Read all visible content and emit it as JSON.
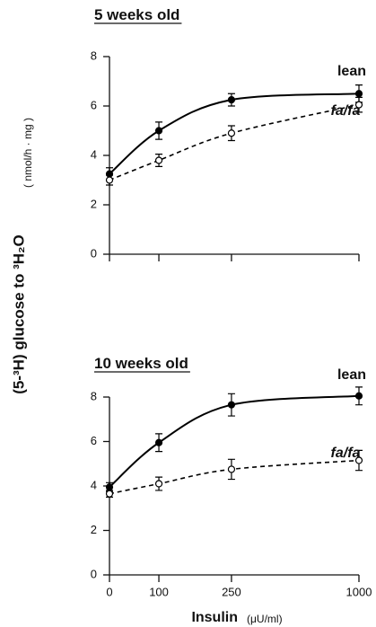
{
  "shared": {
    "ylabel": "(5-³H) glucose to ³H₂O",
    "xlabel": "Insulin",
    "xlabel_unit": "(μU/ml)"
  },
  "chart_data": [
    {
      "type": "line",
      "title": "5 weeks old",
      "ylabel_unit": "( nmol/h · mg )",
      "categories": [
        null,
        null,
        null,
        null
      ],
      "ylim": [
        0,
        8
      ],
      "yticks": [
        0,
        2,
        4,
        6,
        8
      ],
      "series": [
        {
          "name": "lean",
          "color": "#000000",
          "marker": "filled",
          "dashed": false,
          "values": [
            3.25,
            5.0,
            6.25,
            6.5
          ],
          "errors": [
            0.25,
            0.35,
            0.25,
            0.35
          ]
        },
        {
          "name": "fa/fa",
          "color": "#000000",
          "marker": "open",
          "dashed": true,
          "values": [
            3.0,
            3.8,
            4.9,
            6.05
          ],
          "errors": [
            0.2,
            0.25,
            0.3,
            0.3
          ]
        }
      ]
    },
    {
      "type": "line",
      "title": "10 weeks old",
      "categories": [
        "0",
        "100",
        "250",
        "1000"
      ],
      "ylim": [
        0,
        8
      ],
      "yticks": [
        0,
        2,
        4,
        6,
        8
      ],
      "series": [
        {
          "name": "lean",
          "color": "#000000",
          "marker": "filled",
          "dashed": false,
          "values": [
            3.95,
            5.95,
            7.65,
            8.05
          ],
          "errors": [
            0.2,
            0.4,
            0.5,
            0.4
          ]
        },
        {
          "name": "fa/fa",
          "color": "#000000",
          "marker": "open",
          "dashed": true,
          "values": [
            3.65,
            4.1,
            4.75,
            5.15
          ],
          "errors": [
            0.15,
            0.3,
            0.45,
            0.45
          ]
        }
      ]
    }
  ]
}
